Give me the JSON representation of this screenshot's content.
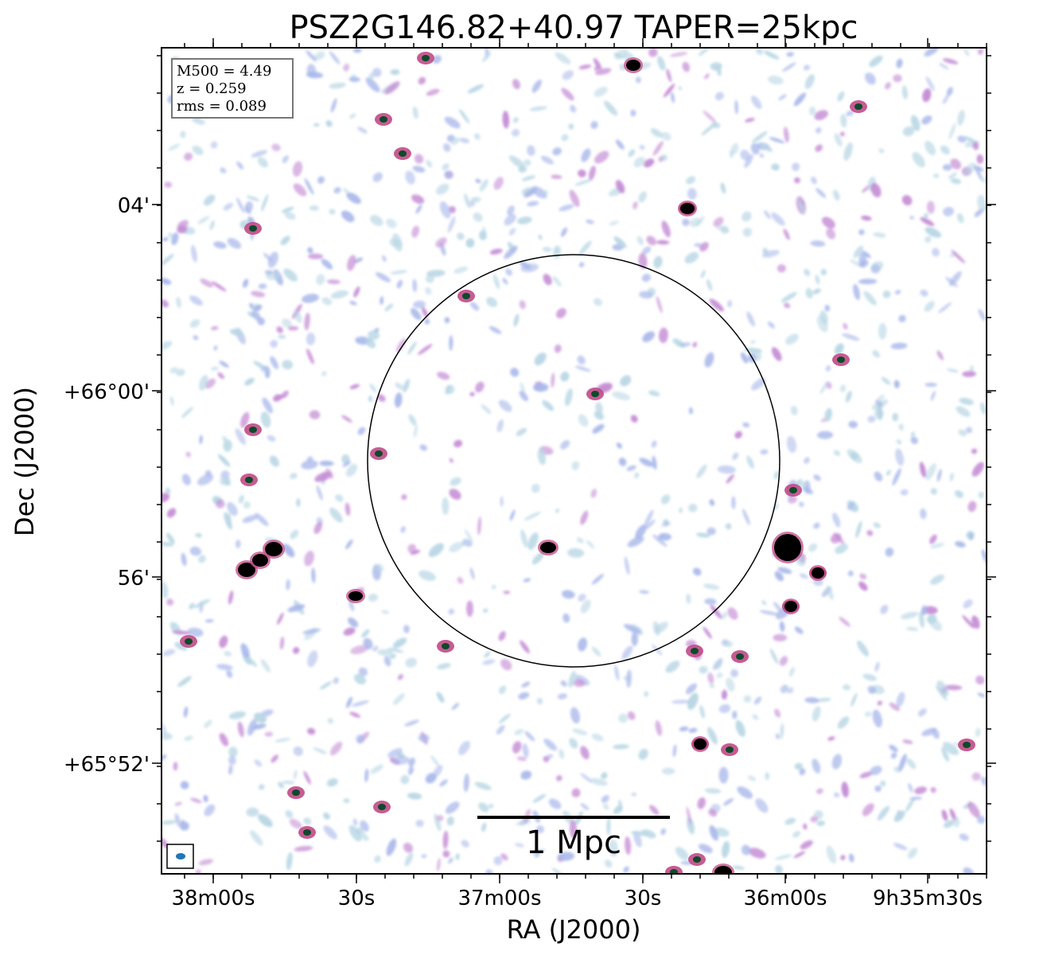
{
  "title": "PSZ2G146.82+40.97 TAPER=25kpc",
  "axes": {
    "xlabel": "RA (J2000)",
    "ylabel": "Dec (J2000)",
    "x_ticks": [
      "38m00s",
      "30s",
      "37m00s",
      "30s",
      "36m00s",
      "9h35m30s"
    ],
    "y_ticks": [
      "04'",
      "+66°00'",
      "56'",
      "+65°52'"
    ]
  },
  "info_box": {
    "mass": "M500 = 4.49",
    "redshift": "z = 0.259",
    "rms": "rms = 0.089"
  },
  "scale_bar": {
    "label": "1 Mpc"
  },
  "colors": {
    "noise_light": "#b8d6e4",
    "noise_blue": "#a9b8ea",
    "noise_purple": "#c48bd4",
    "source_magenta": "#c04a86",
    "source_core": "#0d4a2a",
    "bright_source": "#000000",
    "beam": "#1f77b4"
  }
}
